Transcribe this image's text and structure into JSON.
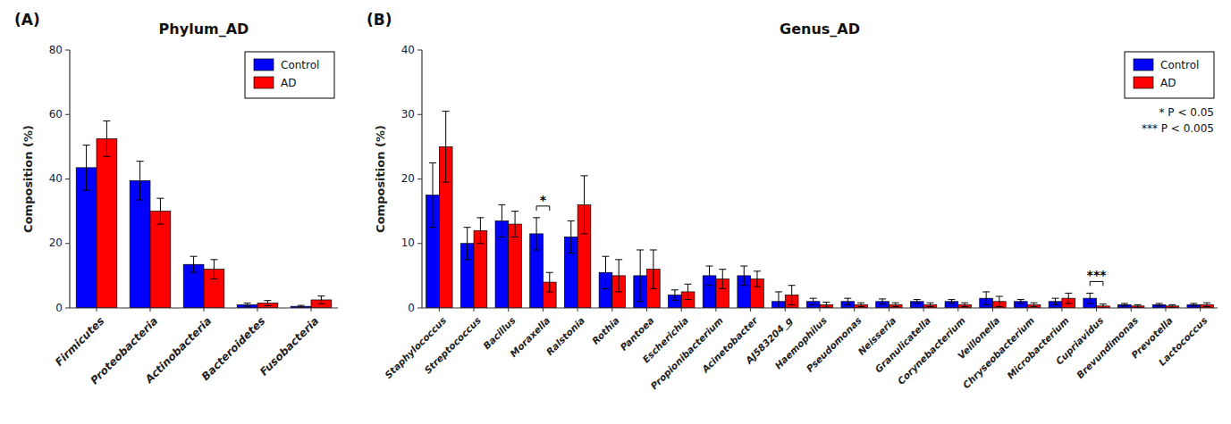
{
  "chart_data": [
    {
      "type": "bar",
      "title": "Phylum_AD",
      "panel_label": "(A)",
      "ylabel": "Composition (%)",
      "categories": [
        "Firmicutes",
        "Proteobacteria",
        "Actinobacteria",
        "Bacteroidetes",
        "Fusobacteria"
      ],
      "series": [
        {
          "name": "Control",
          "color": "#0000FF",
          "values": [
            43.5,
            39.5,
            13.5,
            1.0,
            0.5
          ],
          "errors": [
            7.0,
            6.0,
            2.5,
            0.5,
            0.3
          ]
        },
        {
          "name": "AD",
          "color": "#FF0000",
          "values": [
            52.5,
            30.0,
            12.0,
            1.5,
            2.5
          ],
          "errors": [
            5.5,
            4.0,
            3.0,
            0.8,
            1.2
          ]
        }
      ],
      "ylim": [
        0,
        80
      ],
      "yticks": [
        0,
        20,
        40,
        60,
        80
      ],
      "grid": false,
      "legend": "upper right"
    },
    {
      "type": "bar",
      "title": "Genus_AD",
      "panel_label": "(B)",
      "ylabel": "Composition (%)",
      "categories": [
        "Staphylococcus",
        "Streptococcus",
        "Bacillus",
        "Moraxella",
        "Ralstonia",
        "Rothia",
        "Pantoea",
        "Escherichia",
        "Propionibacterium",
        "Acinetobacter",
        "AJ583204_g",
        "Haemophilus",
        "Pseudomonas",
        "Neisseria",
        "Granulicatella",
        "Corynebacterium",
        "Veillonella",
        "Chryseobacterium",
        "Microbacterium",
        "Cupriavidus",
        "Brevundimonas",
        "Prevotella",
        "Lactococcus"
      ],
      "series": [
        {
          "name": "Control",
          "color": "#0000FF",
          "values": [
            17.5,
            10.0,
            13.5,
            11.5,
            11.0,
            5.5,
            5.0,
            2.0,
            5.0,
            5.0,
            1.0,
            1.0,
            1.0,
            1.0,
            1.0,
            1.0,
            1.5,
            1.0,
            1.0,
            1.5,
            0.5,
            0.5,
            0.5
          ],
          "errors": [
            5.0,
            2.5,
            2.5,
            2.5,
            2.5,
            2.5,
            4.0,
            0.8,
            1.5,
            1.5,
            1.5,
            0.5,
            0.5,
            0.4,
            0.3,
            0.3,
            1.0,
            0.3,
            0.5,
            0.8,
            0.2,
            0.2,
            0.2
          ]
        },
        {
          "name": "AD",
          "color": "#FF0000",
          "values": [
            25.0,
            12.0,
            13.0,
            4.0,
            16.0,
            5.0,
            6.0,
            2.5,
            4.5,
            4.5,
            2.0,
            0.5,
            0.5,
            0.5,
            0.5,
            0.5,
            1.0,
            0.5,
            1.5,
            0.3,
            0.3,
            0.3,
            0.5
          ],
          "errors": [
            5.5,
            2.0,
            2.0,
            1.5,
            4.5,
            2.5,
            3.0,
            1.2,
            1.5,
            1.2,
            1.5,
            0.4,
            0.3,
            0.3,
            0.3,
            0.3,
            0.8,
            0.3,
            0.8,
            0.3,
            0.2,
            0.2,
            0.3
          ]
        }
      ],
      "ylim": [
        0,
        40
      ],
      "yticks": [
        0,
        10,
        20,
        30,
        40
      ],
      "grid": false,
      "legend": "upper right",
      "annotations": [
        {
          "text": "* P < 0.05"
        },
        {
          "text": "*** P < 0.005"
        },
        {
          "text": "*",
          "category": "Moraxella"
        },
        {
          "text": "***",
          "category": "Cupriavidus"
        }
      ]
    }
  ]
}
